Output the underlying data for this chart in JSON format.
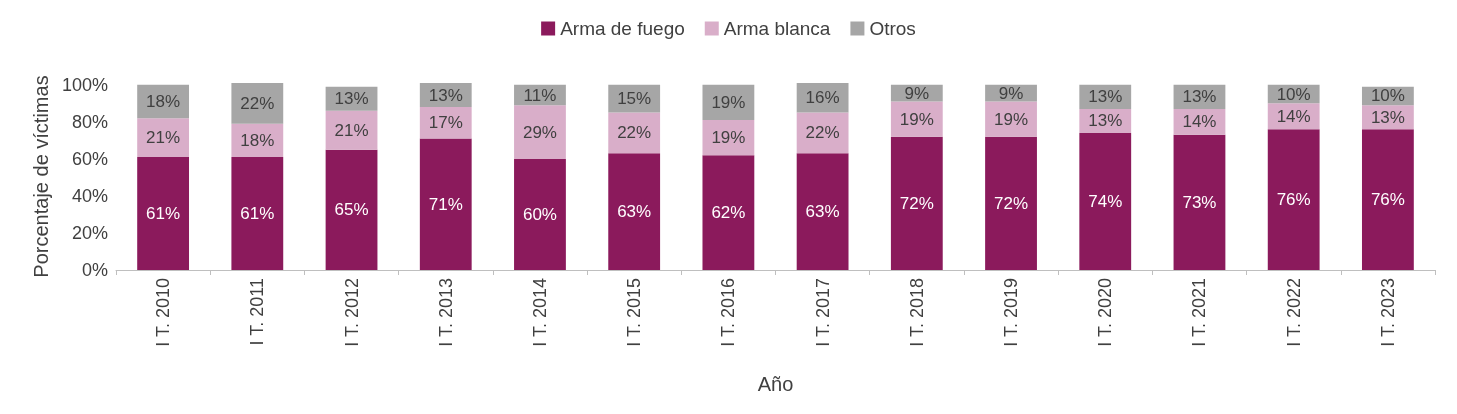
{
  "chart_data": {
    "type": "bar",
    "stacked": true,
    "xlabel": "Año",
    "ylabel": "Porcentaje de víctimas",
    "categories": [
      "I T. 2010",
      "I T. 2011",
      "I T. 2012",
      "I T. 2013",
      "I T. 2014",
      "I T. 2015",
      "I T. 2016",
      "I T. 2017",
      "I T. 2018",
      "I T. 2019",
      "I T. 2020",
      "I T. 2021",
      "I T. 2022",
      "I T. 2023"
    ],
    "series": [
      {
        "name": "Arma de fuego",
        "color": "#8b1a5c",
        "values": [
          61,
          61,
          65,
          71,
          60,
          63,
          62,
          63,
          72,
          72,
          74,
          73,
          76,
          76
        ],
        "value_labels": [
          "61%",
          "61%",
          "65%",
          "71%",
          "60%",
          "63%",
          "62%",
          "63%",
          "72%",
          "72%",
          "74%",
          "73%",
          "76%",
          "76%"
        ]
      },
      {
        "name": "Arma blanca",
        "color": "#d9aec9",
        "values": [
          21,
          18,
          21,
          17,
          29,
          22,
          19,
          22,
          19,
          19,
          13,
          14,
          14,
          13
        ],
        "value_labels": [
          "21%",
          "18%",
          "21%",
          "17%",
          "29%",
          "22%",
          "19%",
          "22%",
          "19%",
          "19%",
          "13%",
          "14%",
          "14%",
          "13%"
        ]
      },
      {
        "name": "Otros",
        "color": "#a6a6a6",
        "values": [
          18,
          22,
          13,
          13,
          11,
          15,
          19,
          16,
          9,
          9,
          13,
          13,
          10,
          10
        ],
        "value_labels": [
          "18%",
          "22%",
          "13%",
          "13%",
          "11%",
          "15%",
          "19%",
          "16%",
          "9%",
          "9%",
          "13%",
          "13%",
          "10%",
          "10%"
        ]
      }
    ],
    "ylim": [
      0,
      101
    ],
    "yticks": [
      {
        "value": 0,
        "label": "0%"
      },
      {
        "value": 20,
        "label": "20%"
      },
      {
        "value": 40,
        "label": "40%"
      },
      {
        "value": 60,
        "label": "60%"
      },
      {
        "value": 80,
        "label": "80%"
      },
      {
        "value": 100,
        "label": "100%"
      }
    ],
    "grid": false,
    "legend": "top"
  }
}
